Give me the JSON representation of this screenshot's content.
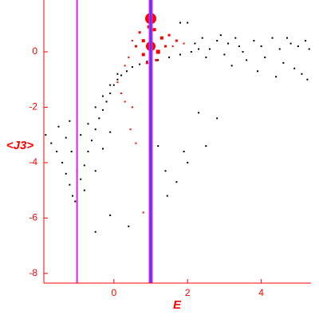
{
  "chart_data": {
    "type": "scatter",
    "xlabel": "E",
    "ylabel": "<J3>",
    "xlim": [
      -1.9,
      5.35
    ],
    "ylim": [
      -8.35,
      1.87
    ],
    "xticks": [
      0,
      2,
      4
    ],
    "yticks": [
      -8,
      -6,
      -4,
      -2,
      0
    ],
    "axis_color": "#ff0000",
    "vlines": [
      {
        "x": -1,
        "color": "#e020e0"
      },
      {
        "x": 1,
        "color": "#e020e0"
      },
      {
        "x": 1,
        "color": "#4040ff"
      }
    ],
    "series": [
      {
        "color": "#000000",
        "x": [
          -1.85,
          -1.7,
          -1.55,
          -1.4,
          -1.3,
          -1.2,
          -1.12,
          -1.05,
          -1.5,
          -1.3,
          -1.15,
          -1.0,
          -0.9,
          -0.8,
          -0.7,
          -0.6,
          -0.5,
          -0.4,
          -0.3,
          -0.2,
          -0.1,
          0.0,
          0.1,
          0.2,
          0.35,
          0.5,
          0.7,
          0.9,
          1.2,
          1.5,
          1.8,
          2.1,
          -1.2,
          -0.9,
          -0.7,
          -0.5,
          -0.3,
          -0.1,
          0.1,
          -0.8,
          -0.5,
          -0.3,
          -0.1,
          -0.5,
          -0.1,
          0.4,
          1.2,
          1.4,
          1.45,
          1.7,
          1.9,
          2.0,
          2.3,
          2.5,
          2.8,
          1.8,
          2.0,
          2.2,
          2.4,
          2.6,
          2.8,
          3.0,
          3.1,
          3.3,
          3.5,
          3.6,
          3.8,
          4.0,
          4.1,
          4.3,
          4.5,
          4.6,
          4.8,
          4.9,
          5.0,
          5.1,
          5.2,
          5.25,
          3.2,
          2.9,
          3.9,
          4.4,
          5.3,
          2.5,
          4.7,
          3.4,
          2.3
        ],
        "values": [
          -3.0,
          -3.3,
          -3.6,
          -4.0,
          -4.4,
          -4.8,
          -5.2,
          -5.4,
          -2.7,
          -3.1,
          -3.6,
          -4.3,
          -4.6,
          -4.1,
          -3.6,
          -3.2,
          -2.8,
          -2.4,
          -2.1,
          -1.8,
          -1.5,
          -1.2,
          -1.0,
          -0.85,
          -0.7,
          -0.55,
          -0.45,
          -0.35,
          -0.3,
          -0.2,
          -0.1,
          0.0,
          -2.5,
          -3.0,
          -2.6,
          -2.0,
          -1.6,
          -1.2,
          -0.8,
          -5.0,
          -4.3,
          -3.5,
          -2.9,
          -6.5,
          -5.9,
          -6.3,
          -3.4,
          -4.3,
          -5.2,
          -4.7,
          -3.6,
          -4.0,
          -2.2,
          -3.4,
          -2.4,
          1.05,
          1.05,
          0.3,
          0.5,
          0.1,
          0.4,
          -0.1,
          0.3,
          0.5,
          0.0,
          -0.3,
          0.4,
          0.2,
          -0.2,
          0.5,
          0.1,
          -0.4,
          0.3,
          -0.6,
          0.2,
          -0.8,
          0.4,
          -1.0,
          -0.5,
          0.6,
          -0.7,
          -0.9,
          0.1,
          -0.2,
          0.5,
          0.2,
          0.1
        ]
      },
      {
        "color": "#ff0000",
        "x": [
          1.0,
          0.95,
          1.1,
          0.7,
          0.8,
          1.0,
          1.2,
          0.8,
          1.3,
          1.5,
          1.7,
          1.9,
          0.6,
          0.4,
          0.3,
          0.1,
          0.2,
          0.3,
          0.5,
          0.45,
          0.6,
          1.0,
          0.8,
          1.15,
          1.4,
          0.9,
          1.6,
          0.5
        ],
        "values": [
          1.2,
          0.9,
          0.8,
          0.7,
          0.4,
          0.2,
          0.0,
          -0.1,
          0.5,
          0.6,
          0.4,
          0.3,
          0.2,
          -0.2,
          -0.5,
          -1.1,
          -1.5,
          -1.8,
          -2.0,
          -2.8,
          -3.3,
          -1.4,
          -5.8,
          -0.3,
          0.2,
          -0.4,
          0.2,
          0.4
        ],
        "sizes": [
          7,
          4,
          4,
          3,
          4,
          6,
          5,
          4,
          4,
          3,
          3,
          2,
          3,
          2,
          2,
          2,
          2,
          2,
          2,
          2,
          2,
          3,
          2,
          3,
          3,
          3,
          2,
          2
        ]
      }
    ]
  }
}
